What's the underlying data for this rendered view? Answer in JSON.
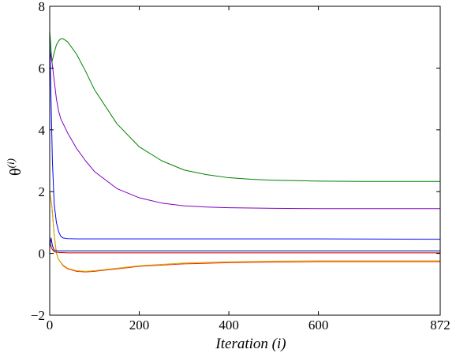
{
  "chart_data": {
    "type": "line",
    "title": "",
    "xlabel": "Iteration (i)",
    "ylabel": {
      "base": "θ",
      "superscript": "(i)"
    },
    "xlim": [
      0,
      872
    ],
    "ylim": [
      -2,
      8
    ],
    "xticks": [
      0,
      200,
      400,
      600,
      872
    ],
    "yticks": [
      -2,
      0,
      2,
      4,
      6,
      8
    ],
    "xtick_labels": [
      "0",
      "200",
      "400",
      "600",
      "872"
    ],
    "ytick_labels": [
      "−2",
      "0",
      "2",
      "4",
      "6",
      "8"
    ],
    "grid": false,
    "legend": "none",
    "series": [
      {
        "color": "#008000",
        "x": [
          0,
          5,
          10,
          15,
          20,
          25,
          30,
          40,
          60,
          80,
          100,
          150,
          200,
          250,
          300,
          350,
          400,
          450,
          500,
          600,
          700,
          872
        ],
        "y": [
          7.2,
          6.2,
          6.5,
          6.75,
          6.88,
          6.95,
          6.95,
          6.85,
          6.45,
          5.9,
          5.3,
          4.2,
          3.45,
          3.0,
          2.7,
          2.55,
          2.45,
          2.4,
          2.37,
          2.34,
          2.33,
          2.33
        ]
      },
      {
        "color": "#8000c0",
        "x": [
          0,
          5,
          10,
          15,
          20,
          25,
          30,
          40,
          60,
          80,
          100,
          150,
          200,
          250,
          300,
          350,
          400,
          450,
          500,
          600,
          700,
          872
        ],
        "y": [
          6.6,
          6.2,
          5.6,
          5.0,
          4.6,
          4.35,
          4.2,
          3.9,
          3.4,
          3.0,
          2.65,
          2.1,
          1.8,
          1.63,
          1.54,
          1.5,
          1.48,
          1.47,
          1.46,
          1.45,
          1.45,
          1.45
        ]
      },
      {
        "color": "#0000ff",
        "x": [
          0,
          3,
          6,
          10,
          15,
          20,
          25,
          30,
          40,
          60,
          100,
          200,
          400,
          600,
          872
        ],
        "y": [
          7.0,
          5.0,
          3.0,
          1.6,
          1.0,
          0.7,
          0.55,
          0.5,
          0.48,
          0.47,
          0.47,
          0.47,
          0.47,
          0.47,
          0.46
        ]
      },
      {
        "color": "#ff2000",
        "x": [
          0,
          5,
          10,
          15,
          20,
          30,
          40,
          60,
          80,
          100,
          150,
          200,
          300,
          400,
          500,
          600,
          700,
          872
        ],
        "y": [
          2.0,
          1.5,
          0.6,
          0.0,
          -0.2,
          -0.4,
          -0.5,
          -0.58,
          -0.6,
          -0.58,
          -0.5,
          -0.42,
          -0.34,
          -0.3,
          -0.28,
          -0.27,
          -0.27,
          -0.27
        ]
      },
      {
        "color": "#c8b400",
        "x": [
          0,
          5,
          10,
          15,
          20,
          30,
          40,
          60,
          80,
          100,
          150,
          200,
          300,
          400,
          500,
          600,
          700,
          872
        ],
        "y": [
          2.0,
          1.5,
          0.6,
          0.0,
          -0.2,
          -0.38,
          -0.48,
          -0.56,
          -0.58,
          -0.56,
          -0.48,
          -0.4,
          -0.31,
          -0.27,
          -0.25,
          -0.24,
          -0.24,
          -0.24
        ]
      },
      {
        "color": "#c00000",
        "x": [
          0,
          5,
          10,
          20,
          40,
          100,
          400,
          872
        ],
        "y": [
          0.35,
          0.15,
          0.05,
          0.03,
          0.02,
          0.02,
          0.02,
          0.02
        ]
      },
      {
        "color": "#0000a0",
        "x": [
          0,
          3,
          6,
          10,
          20,
          100,
          400,
          872
        ],
        "y": [
          0.2,
          0.5,
          0.25,
          0.1,
          0.08,
          0.08,
          0.08,
          0.08
        ]
      }
    ]
  }
}
